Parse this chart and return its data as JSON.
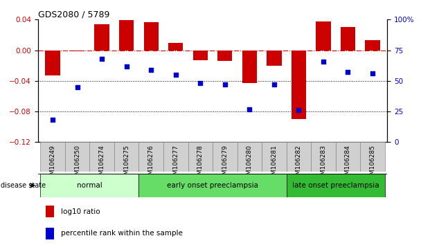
{
  "title": "GDS2080 / 5789",
  "samples": [
    "GSM106249",
    "GSM106250",
    "GSM106274",
    "GSM106275",
    "GSM106276",
    "GSM106277",
    "GSM106278",
    "GSM106279",
    "GSM106280",
    "GSM106281",
    "GSM106282",
    "GSM106283",
    "GSM106284",
    "GSM106285"
  ],
  "log10_ratio": [
    -0.033,
    -0.001,
    0.034,
    0.039,
    0.037,
    0.01,
    -0.013,
    -0.014,
    -0.043,
    -0.02,
    -0.09,
    0.038,
    0.03,
    0.013
  ],
  "percentile_rank": [
    18,
    45,
    68,
    62,
    59,
    55,
    48,
    47,
    27,
    47,
    26,
    66,
    57,
    56
  ],
  "disease_groups": [
    {
      "label": "normal",
      "start": 0,
      "end": 4,
      "color": "#ccffcc"
    },
    {
      "label": "early onset preeclampsia",
      "start": 4,
      "end": 10,
      "color": "#66dd66"
    },
    {
      "label": "late onset preeclampsia",
      "start": 10,
      "end": 14,
      "color": "#33bb33"
    }
  ],
  "bar_color": "#cc0000",
  "point_color": "#0000cc",
  "zero_line_color": "#cc0000",
  "grid_color": "#000000",
  "ylim_left": [
    -0.12,
    0.04
  ],
  "ylim_right": [
    0,
    100
  ],
  "yticks_left": [
    -0.12,
    -0.08,
    -0.04,
    0,
    0.04
  ],
  "yticks_right": [
    0,
    25,
    50,
    75,
    100
  ],
  "ytick_right_labels": [
    "0",
    "25",
    "50",
    "75",
    "100%"
  ],
  "bg_color": "#ffffff",
  "bar_width": 0.6
}
